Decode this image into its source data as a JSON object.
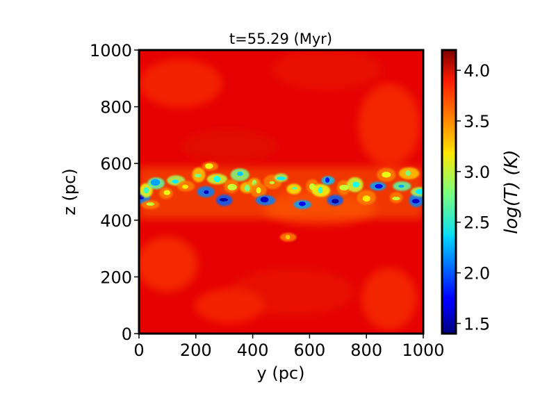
{
  "chart_data": {
    "type": "heatmap",
    "title": "t=55.29 (Myr)",
    "xlabel": "y (pc)",
    "ylabel": "z (pc)",
    "xlim": [
      0,
      1000
    ],
    "ylim": [
      0,
      1000
    ],
    "x_ticks": [
      0,
      200,
      400,
      600,
      800,
      1000
    ],
    "y_ticks": [
      0,
      200,
      400,
      600,
      800,
      1000
    ],
    "x_tick_labels": [
      "0",
      "200",
      "400",
      "600",
      "800",
      "1000"
    ],
    "y_tick_labels": [
      "0",
      "200",
      "400",
      "600",
      "800",
      "1000"
    ],
    "colorbar": {
      "label": "log(T) (K)",
      "range": [
        1.4,
        4.2
      ],
      "ticks": [
        1.5,
        2.0,
        2.5,
        3.0,
        3.5,
        4.0
      ],
      "tick_labels": [
        "1.5",
        "2.0",
        "2.5",
        "3.0",
        "3.5",
        "4.0"
      ],
      "colormap": "jet"
    },
    "field": {
      "background_value": 3.92,
      "midplane_band": {
        "z_center": 490,
        "z_halfwidth": 90
      },
      "cold_clumps": [
        {
          "y": 10,
          "z": 480,
          "v": 1.6
        },
        {
          "y": 25,
          "z": 505,
          "v": 2.6
        },
        {
          "y": 40,
          "z": 455,
          "v": 3.0
        },
        {
          "y": 60,
          "z": 530,
          "v": 2.2
        },
        {
          "y": 95,
          "z": 495,
          "v": 3.1
        },
        {
          "y": 130,
          "z": 540,
          "v": 2.4
        },
        {
          "y": 165,
          "z": 520,
          "v": 3.2
        },
        {
          "y": 210,
          "z": 560,
          "v": 2.8
        },
        {
          "y": 235,
          "z": 500,
          "v": 1.6
        },
        {
          "y": 250,
          "z": 590,
          "v": 3.1
        },
        {
          "y": 275,
          "z": 545,
          "v": 2.5
        },
        {
          "y": 300,
          "z": 470,
          "v": 1.5
        },
        {
          "y": 325,
          "z": 520,
          "v": 3.0
        },
        {
          "y": 355,
          "z": 560,
          "v": 2.3
        },
        {
          "y": 380,
          "z": 515,
          "v": 2.8
        },
        {
          "y": 405,
          "z": 530,
          "v": 2.9
        },
        {
          "y": 420,
          "z": 505,
          "v": 3.1
        },
        {
          "y": 445,
          "z": 470,
          "v": 1.6
        },
        {
          "y": 470,
          "z": 535,
          "v": 3.0
        },
        {
          "y": 500,
          "z": 550,
          "v": 2.4
        },
        {
          "y": 525,
          "z": 340,
          "v": 3.3
        },
        {
          "y": 545,
          "z": 510,
          "v": 2.7
        },
        {
          "y": 575,
          "z": 455,
          "v": 1.7
        },
        {
          "y": 610,
          "z": 520,
          "v": 3.0
        },
        {
          "y": 640,
          "z": 505,
          "v": 2.6
        },
        {
          "y": 665,
          "z": 540,
          "v": 1.8
        },
        {
          "y": 690,
          "z": 470,
          "v": 1.5
        },
        {
          "y": 720,
          "z": 515,
          "v": 3.0
        },
        {
          "y": 760,
          "z": 525,
          "v": 2.5
        },
        {
          "y": 800,
          "z": 480,
          "v": 3.2
        },
        {
          "y": 840,
          "z": 520,
          "v": 1.7
        },
        {
          "y": 870,
          "z": 560,
          "v": 3.1
        },
        {
          "y": 905,
          "z": 480,
          "v": 3.0
        },
        {
          "y": 925,
          "z": 520,
          "v": 2.2
        },
        {
          "y": 950,
          "z": 565,
          "v": 2.8
        },
        {
          "y": 975,
          "z": 470,
          "v": 1.6
        },
        {
          "y": 990,
          "z": 500,
          "v": 2.4
        }
      ]
    }
  }
}
